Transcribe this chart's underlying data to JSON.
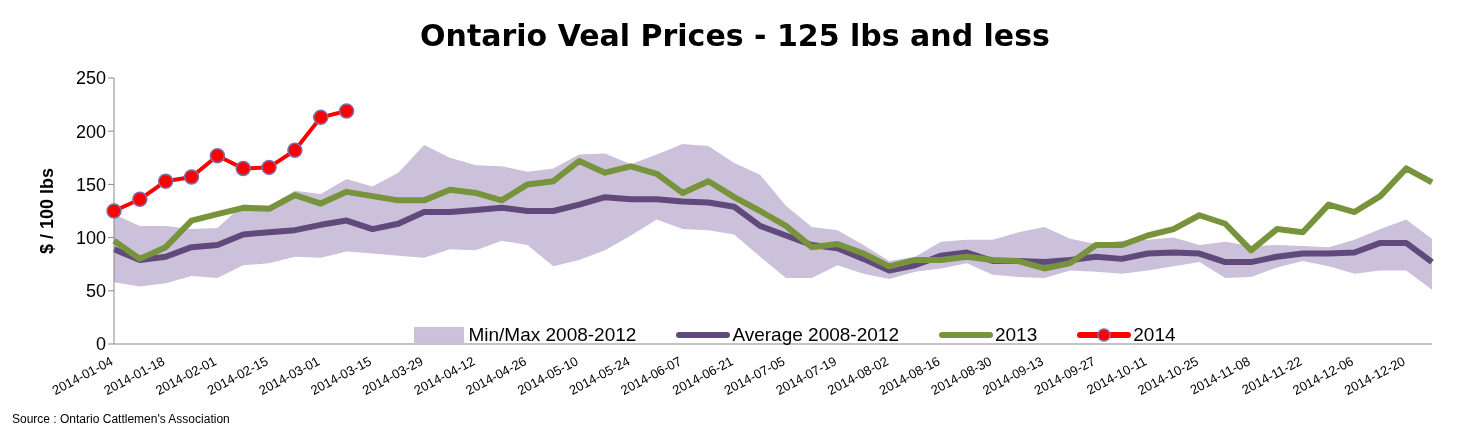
{
  "chart_data": {
    "type": "line",
    "title": "Ontario Veal Prices - 125 lbs and less",
    "ylabel": "$ / 100 lbs",
    "categories": [
      "2014-01-04",
      null,
      "2014-01-18",
      null,
      "2014-02-01",
      null,
      "2014-02-15",
      null,
      "2014-03-01",
      null,
      "2014-03-15",
      null,
      "2014-03-29",
      null,
      "2014-04-12",
      null,
      "2014-04-26",
      null,
      "2014-05-10",
      null,
      "2014-05-24",
      null,
      "2014-06-07",
      null,
      "2014-06-21",
      null,
      "2014-07-05",
      null,
      "2014-07-19",
      null,
      "2014-08-02",
      null,
      "2014-08-16",
      null,
      "2014-08-30",
      null,
      "2014-09-13",
      null,
      "2014-09-27",
      null,
      "2014-10-11",
      null,
      "2014-10-25",
      null,
      "2014-11-08",
      null,
      "2014-11-22",
      null,
      "2014-12-06",
      null,
      "2014-12-20",
      null
    ],
    "series": [
      {
        "name": "Min/Max 2008-2012",
        "type": "area",
        "color": "#ccc1da",
        "values": [
          null,
          null,
          null,
          null,
          null,
          null,
          null,
          null,
          null,
          null,
          null,
          null,
          null,
          null,
          null,
          null,
          null,
          null,
          null,
          null,
          null,
          null,
          null,
          null,
          null,
          null,
          null,
          null,
          null,
          null,
          null,
          null,
          null,
          null,
          null,
          null,
          null,
          null,
          null,
          null,
          null,
          null,
          null,
          null,
          null,
          null,
          null,
          null,
          null,
          null,
          null,
          null
        ]
      },
      {
        "name": "Average 2008-2012",
        "color": "#604a7b",
        "values": [
          89,
          79,
          82,
          91,
          93,
          103,
          105,
          107,
          112,
          116,
          108,
          113,
          124,
          124,
          126,
          128,
          125,
          125,
          131,
          138,
          136,
          136,
          134,
          133,
          129,
          111,
          102,
          93,
          90,
          80,
          69,
          74,
          83,
          86,
          78,
          78,
          77,
          79,
          82,
          80,
          85,
          86,
          85,
          77,
          77,
          82,
          85,
          85,
          86,
          95,
          95,
          77
        ],
        "lower": [
          58,
          54,
          57,
          64,
          62,
          74,
          76,
          82,
          81,
          87,
          85,
          83,
          81,
          89,
          88,
          97,
          93,
          73,
          79,
          88,
          102,
          117,
          108,
          107,
          103,
          82,
          62,
          62,
          74,
          66,
          61,
          68,
          71,
          76,
          65,
          63,
          62,
          69,
          68,
          66,
          69,
          73,
          77,
          62,
          63,
          72,
          78,
          73,
          66,
          69,
          69,
          51
        ],
        "upper": [
          122,
          111,
          111,
          108,
          109,
          131,
          130,
          144,
          141,
          155,
          148,
          161,
          187,
          175,
          168,
          167,
          162,
          165,
          178,
          179,
          169,
          178,
          188,
          186,
          170,
          159,
          130,
          110,
          107,
          93,
          78,
          82,
          96,
          98,
          98,
          105,
          110,
          99,
          94,
          97,
          98,
          100,
          93,
          96,
          92,
          93,
          92,
          91,
          98,
          108,
          117,
          99
        ]
      },
      {
        "name": "2013",
        "color": "#77933c",
        "values": [
          97,
          80,
          91,
          116,
          122,
          128,
          127,
          140,
          132,
          143,
          139,
          135,
          135,
          145,
          142,
          135,
          150,
          153,
          172,
          161,
          167,
          160,
          142,
          153,
          138,
          125,
          111,
          91,
          94,
          85,
          73,
          79,
          79,
          82,
          79,
          78,
          71,
          76,
          93,
          93,
          102,
          108,
          121,
          113,
          88,
          108,
          105,
          131,
          124,
          139,
          165,
          152
        ]
      },
      {
        "name": "2014",
        "color": "#ff0000",
        "marker": "circle",
        "values": [
          125,
          136,
          153,
          157,
          177,
          165,
          166,
          182,
          213,
          219,
          null,
          null,
          null,
          null,
          null,
          null,
          null,
          null,
          null,
          null,
          null,
          null,
          null,
          null,
          null,
          null,
          null,
          null,
          null,
          null,
          null,
          null,
          null,
          null,
          null,
          null,
          null,
          null,
          null,
          null,
          null,
          null,
          null,
          null,
          null,
          null,
          null,
          null,
          null,
          null,
          null,
          null
        ]
      }
    ],
    "ylim": [
      0,
      250
    ],
    "yticks": [
      0,
      50,
      100,
      150,
      200,
      250
    ],
    "grid": false,
    "legend": "bottom",
    "annotations": [
      "Source : Ontario Cattlemen's Association"
    ]
  }
}
